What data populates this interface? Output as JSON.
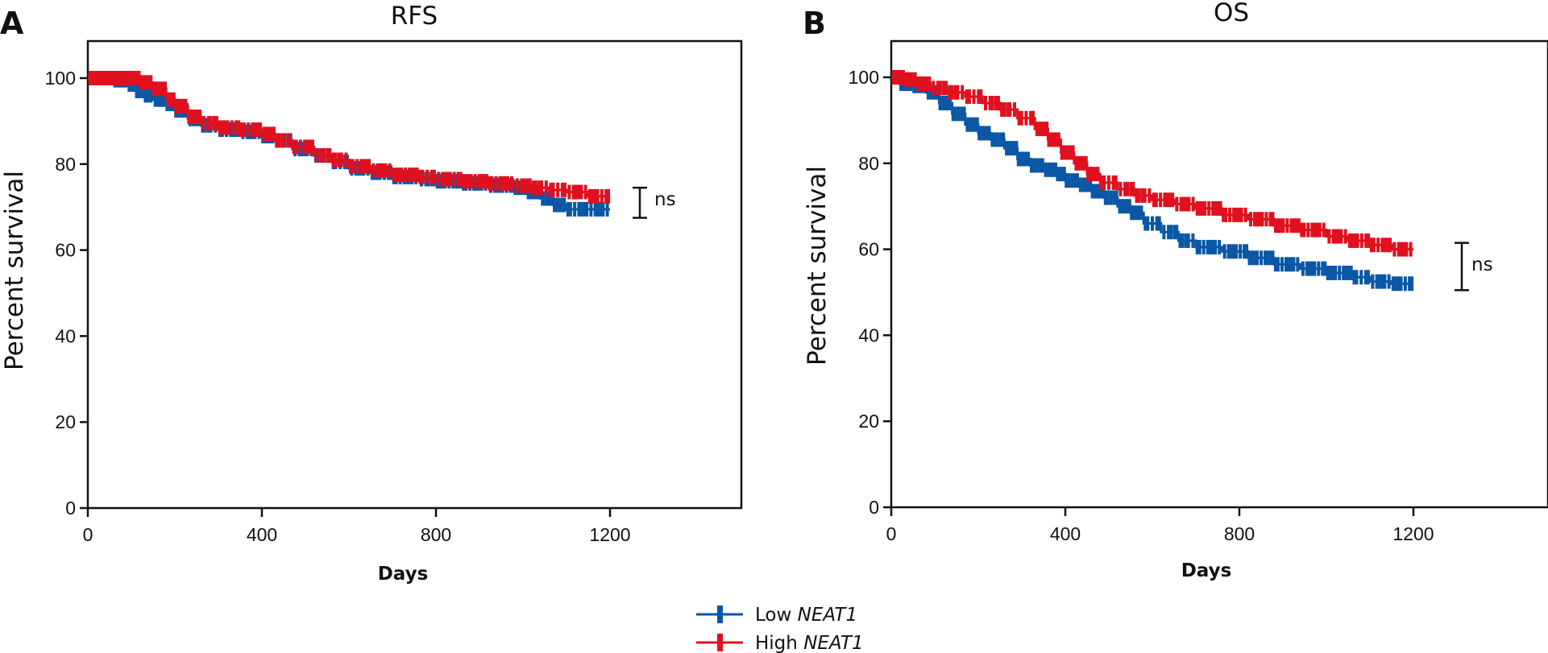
{
  "colors": {
    "low": "#0a57a6",
    "high": "#e0101f",
    "axis": "#111111"
  },
  "legend": {
    "items": [
      {
        "key": "low",
        "label_prefix": "Low ",
        "label_gene": "NEAT1"
      },
      {
        "key": "high",
        "label_prefix": "High ",
        "label_gene": "NEAT1"
      }
    ],
    "placement": "bottom-center"
  },
  "chart_data": [
    {
      "type": "line",
      "subtype": "kaplan-meier",
      "panel_letter": "A",
      "title": "RFS",
      "xlabel": "Days",
      "ylabel": "Percent survival",
      "xlim": [
        0,
        1500
      ],
      "ylim": [
        0,
        108
      ],
      "xticks": [
        0,
        400,
        800,
        1200
      ],
      "yticks": [
        0,
        20,
        40,
        60,
        80,
        100
      ],
      "grid": false,
      "significance": "ns",
      "significance_range": [
        67.5,
        74.5
      ],
      "series": [
        {
          "name": "Low NEAT1",
          "key": "low",
          "x": [
            0,
            30,
            60,
            90,
            110,
            130,
            150,
            180,
            200,
            230,
            260,
            300,
            350,
            400,
            430,
            470,
            520,
            560,
            600,
            650,
            700,
            760,
            800,
            860,
            920,
            980,
            1010,
            1040,
            1070,
            1100,
            1150,
            1200
          ],
          "y": [
            100,
            100,
            99.5,
            98.5,
            97,
            96,
            95,
            94,
            92.5,
            90.5,
            89,
            88,
            87.5,
            86.5,
            85.5,
            83.5,
            82,
            80.5,
            79,
            78,
            77,
            76.5,
            76,
            75.5,
            75,
            74.5,
            73.5,
            72,
            70.5,
            69.5,
            69.5,
            69.5
          ]
        },
        {
          "name": "High NEAT1",
          "key": "high",
          "x": [
            0,
            30,
            60,
            90,
            120,
            150,
            180,
            200,
            230,
            260,
            300,
            350,
            400,
            430,
            470,
            520,
            560,
            600,
            650,
            700,
            760,
            800,
            860,
            920,
            980,
            1020,
            1060,
            1100,
            1150,
            1200
          ],
          "y": [
            100,
            100,
            100,
            100,
            99,
            97.5,
            95,
            93.5,
            91,
            89.5,
            88.5,
            88,
            87,
            85.5,
            84,
            82,
            81,
            79.5,
            78.5,
            77.5,
            77,
            76.5,
            76,
            75.5,
            75,
            74.5,
            74,
            73.5,
            72.5,
            72.5
          ]
        }
      ]
    },
    {
      "type": "line",
      "subtype": "kaplan-meier",
      "panel_letter": "B",
      "title": "OS",
      "xlabel": "Days",
      "ylabel": "Percent survival",
      "xlim": [
        0,
        1500
      ],
      "ylim": [
        0,
        108
      ],
      "xticks": [
        0,
        400,
        800,
        1200
      ],
      "yticks": [
        0,
        20,
        40,
        60,
        80,
        100
      ],
      "grid": false,
      "significance": "ns",
      "significance_range": [
        50.5,
        61.5
      ],
      "series": [
        {
          "name": "Low NEAT1",
          "key": "low",
          "x": [
            0,
            20,
            50,
            80,
            110,
            140,
            170,
            200,
            230,
            260,
            290,
            320,
            350,
            380,
            400,
            430,
            460,
            490,
            520,
            550,
            580,
            620,
            660,
            700,
            760,
            820,
            880,
            940,
            1000,
            1060,
            1100,
            1150,
            1200
          ],
          "y": [
            100,
            98.5,
            98,
            96.5,
            94,
            91.5,
            89,
            87,
            85.5,
            83.5,
            81,
            79.5,
            78.5,
            77.5,
            76,
            75,
            73.5,
            72,
            70,
            68.5,
            66,
            64,
            62,
            60.5,
            59.5,
            58,
            56.5,
            55.5,
            54.5,
            53.5,
            52.5,
            52,
            52
          ]
        },
        {
          "name": "High NEAT1",
          "key": "high",
          "x": [
            0,
            30,
            60,
            90,
            130,
            170,
            210,
            250,
            290,
            330,
            360,
            390,
            420,
            450,
            480,
            520,
            560,
            600,
            650,
            700,
            760,
            820,
            880,
            940,
            1000,
            1050,
            1100,
            1150,
            1200
          ],
          "y": [
            100,
            99.5,
            98.5,
            97.5,
            96.5,
            95.5,
            94,
            92.5,
            90.5,
            88,
            85.5,
            82.5,
            80,
            77.5,
            75.5,
            74,
            72.5,
            71.5,
            70.5,
            69.5,
            68,
            67,
            65.5,
            64.5,
            63,
            62,
            61,
            60,
            60
          ]
        }
      ]
    }
  ]
}
